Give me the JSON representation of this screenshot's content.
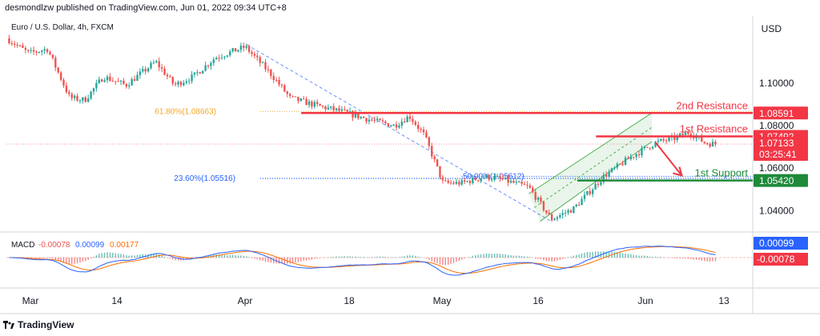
{
  "header": {
    "publisher": "desmondlzw published on TradingView.com, Jun 01, 2022 09:34 UTC+8",
    "symbol": "Euro / U.S. Dollar, 4h, FXCM",
    "currency": "USD"
  },
  "footer": {
    "brand": "TradingView"
  },
  "colors": {
    "up": "#26a69a",
    "down": "#ef5350",
    "resistance": "#f23645",
    "support": "#1e8a3a",
    "fib_orange": "#f5a623",
    "fib_blue": "#2962ff",
    "macd_line": "#2962ff",
    "signal_line": "#ff6d00",
    "channel": "#4caf50"
  },
  "chart_data": {
    "type": "candlestick",
    "title": "Euro / U.S. Dollar, 4h, FXCM",
    "price_axis": {
      "unit": "USD",
      "ticks": [
        "1.10000",
        "1.08000",
        "1.06000",
        "1.04000"
      ],
      "range": [
        1.03,
        1.13
      ]
    },
    "time_axis": {
      "ticks": [
        "Mar",
        "14",
        "Apr",
        "18",
        "May",
        "16",
        "Jun",
        "13"
      ]
    },
    "price_path": [
      {
        "t": 0.0,
        "p": 1.121
      },
      {
        "t": 0.03,
        "p": 1.114
      },
      {
        "t": 0.055,
        "p": 1.116
      },
      {
        "t": 0.085,
        "p": 1.093
      },
      {
        "t": 0.105,
        "p": 1.092
      },
      {
        "t": 0.13,
        "p": 1.103
      },
      {
        "t": 0.16,
        "p": 1.099
      },
      {
        "t": 0.2,
        "p": 1.11
      },
      {
        "t": 0.225,
        "p": 1.099
      },
      {
        "t": 0.25,
        "p": 1.103
      },
      {
        "t": 0.28,
        "p": 1.112
      },
      {
        "t": 0.32,
        "p": 1.117
      },
      {
        "t": 0.355,
        "p": 1.104
      },
      {
        "t": 0.38,
        "p": 1.093
      },
      {
        "t": 0.42,
        "p": 1.089
      },
      {
        "t": 0.445,
        "p": 1.087
      },
      {
        "t": 0.465,
        "p": 1.085
      },
      {
        "t": 0.495,
        "p": 1.082
      },
      {
        "t": 0.52,
        "p": 1.08
      },
      {
        "t": 0.54,
        "p": 1.0845
      },
      {
        "t": 0.56,
        "p": 1.0755
      },
      {
        "t": 0.585,
        "p": 1.053
      },
      {
        "t": 0.61,
        "p": 1.053
      },
      {
        "t": 0.64,
        "p": 1.056
      },
      {
        "t": 0.66,
        "p": 1.055
      },
      {
        "t": 0.7,
        "p": 1.051
      },
      {
        "t": 0.73,
        "p": 1.036
      },
      {
        "t": 0.76,
        "p": 1.041
      },
      {
        "t": 0.8,
        "p": 1.056
      },
      {
        "t": 0.84,
        "p": 1.066
      },
      {
        "t": 0.87,
        "p": 1.072
      },
      {
        "t": 0.895,
        "p": 1.074
      },
      {
        "t": 0.915,
        "p": 1.077
      },
      {
        "t": 0.935,
        "p": 1.072
      },
      {
        "t": 0.95,
        "p": 1.0713
      }
    ],
    "levels": [
      {
        "name": "2nd Resistance",
        "value": "1.08591",
        "kind": "resistance"
      },
      {
        "name": "1st Resistance",
        "value": "1.07492",
        "kind": "resistance"
      },
      {
        "name": "1st Support",
        "value": "1.05420",
        "kind": "support"
      }
    ],
    "fib_levels": [
      {
        "label": "61.80%(1.08663)",
        "value": 1.08663,
        "color": "orange"
      },
      {
        "label": "23.60%(1.05516)",
        "value": 1.05516,
        "color": "blue"
      },
      {
        "label": "50.00%(1.05612)",
        "value": 1.05612,
        "color": "blue"
      }
    ],
    "current_price": {
      "value": "1.07133",
      "countdown": "03:25:41"
    },
    "macd": {
      "label": "MACD",
      "values": [
        "-0.00078",
        "0.00099",
        "0.00177"
      ],
      "axis_labels": [
        "0.00099",
        "-0.00078"
      ]
    }
  }
}
